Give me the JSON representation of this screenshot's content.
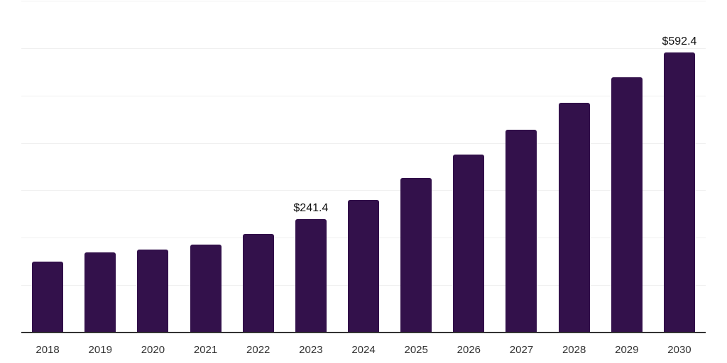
{
  "chart_data": {
    "type": "bar",
    "title": "",
    "xlabel": "",
    "ylabel": "",
    "categories": [
      "2018",
      "2019",
      "2020",
      "2021",
      "2022",
      "2023",
      "2024",
      "2025",
      "2026",
      "2027",
      "2028",
      "2029",
      "2030"
    ],
    "values": [
      151,
      171,
      176,
      187,
      210,
      241.4,
      281,
      327,
      377,
      430,
      486,
      540,
      592.4
    ],
    "annotations": [
      {
        "category": "2023",
        "text": "$241.4"
      },
      {
        "category": "2030",
        "text": "$592.4"
      }
    ],
    "ylim": [
      0,
      700
    ],
    "grid_step": 100,
    "grid": "horizontal",
    "y_axis_tick_labels_visible": false,
    "legend": "none",
    "colors": {
      "bar": "#33114b",
      "grid_line": "#f0f0f0",
      "axis_line": "#333333",
      "tick_label": "#333333",
      "annotation": "#111111",
      "background": "#ffffff"
    }
  }
}
